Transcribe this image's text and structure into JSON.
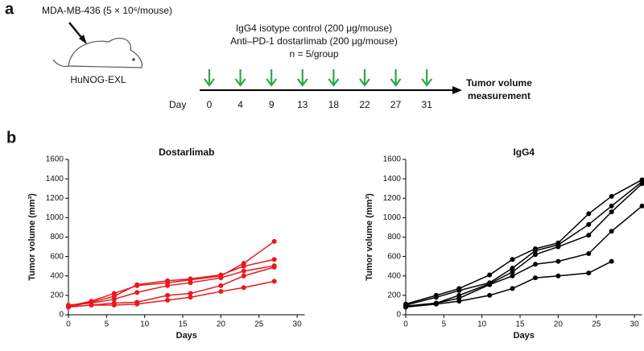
{
  "panel_a": {
    "letter": "a",
    "cell_line": "MDA-MB-436 (5 × 10⁶/mouse)",
    "mouse_model": "HuNOG-EXL",
    "treatments": [
      "IgG4 isotype control (200 μg/mouse)",
      "Anti–PD-1 dostarlimab (200 μg/mouse)",
      "n = 5/group"
    ],
    "day_label": "Day",
    "days": [
      0,
      4,
      9,
      13,
      18,
      22,
      27,
      31
    ],
    "endpoint": [
      "Tumor volume",
      "measurement"
    ]
  },
  "panel_b": {
    "letter": "b"
  },
  "chart_data": [
    {
      "type": "line",
      "title": "Dostarlimab",
      "xlabel": "Days",
      "ylabel": "Tumor volume (mm³)",
      "x": [
        0,
        3,
        6,
        9,
        13,
        16,
        20,
        23,
        27
      ],
      "series": [
        {
          "color": "#e8191e",
          "values": [
            90,
            140,
            220,
            300,
            330,
            360,
            400,
            530,
            755
          ]
        },
        {
          "color": "#e8191e",
          "values": [
            80,
            130,
            190,
            310,
            350,
            370,
            410,
            500,
            570
          ]
        },
        {
          "color": "#e8191e",
          "values": [
            100,
            120,
            160,
            230,
            300,
            330,
            380,
            450,
            505
          ]
        },
        {
          "color": "#e8191e",
          "values": [
            80,
            100,
            120,
            130,
            200,
            220,
            300,
            400,
            490
          ]
        },
        {
          "color": "#e8191e",
          "values": [
            80,
            100,
            100,
            110,
            150,
            180,
            240,
            280,
            345
          ]
        }
      ],
      "xlim": [
        0,
        31
      ],
      "xticks": [
        0,
        5,
        10,
        15,
        20,
        25,
        30
      ],
      "ylim": [
        0,
        1600
      ],
      "yticks": [
        0,
        200,
        400,
        600,
        800,
        1000,
        1200,
        1400,
        1600
      ]
    },
    {
      "type": "line",
      "title": "IgG4",
      "xlabel": "Days",
      "ylabel": "Tumor volume (mm³)",
      "x": [
        0,
        4,
        7,
        11,
        14,
        17,
        20,
        24,
        27,
        31
      ],
      "series": [
        {
          "color": "#000000",
          "values": [
            110,
            200,
            270,
            410,
            570,
            680,
            740,
            1040,
            1220,
            1390
          ]
        },
        {
          "color": "#000000",
          "values": [
            100,
            180,
            250,
            330,
            480,
            660,
            720,
            930,
            1120,
            1370
          ]
        },
        {
          "color": "#000000",
          "values": [
            90,
            120,
            200,
            320,
            440,
            620,
            700,
            820,
            1060,
            1350
          ]
        },
        {
          "color": "#000000",
          "values": [
            80,
            120,
            170,
            310,
            400,
            520,
            550,
            630,
            860,
            1120
          ]
        },
        {
          "color": "#000000",
          "values": [
            80,
            110,
            140,
            200,
            270,
            380,
            400,
            430,
            550,
            null
          ]
        }
      ],
      "xlim": [
        0,
        31
      ],
      "xticks": [
        0,
        5,
        10,
        15,
        20,
        25,
        30
      ],
      "ylim": [
        0,
        1600
      ],
      "yticks": [
        0,
        200,
        400,
        600,
        800,
        1000,
        1200,
        1400,
        1600
      ]
    }
  ]
}
